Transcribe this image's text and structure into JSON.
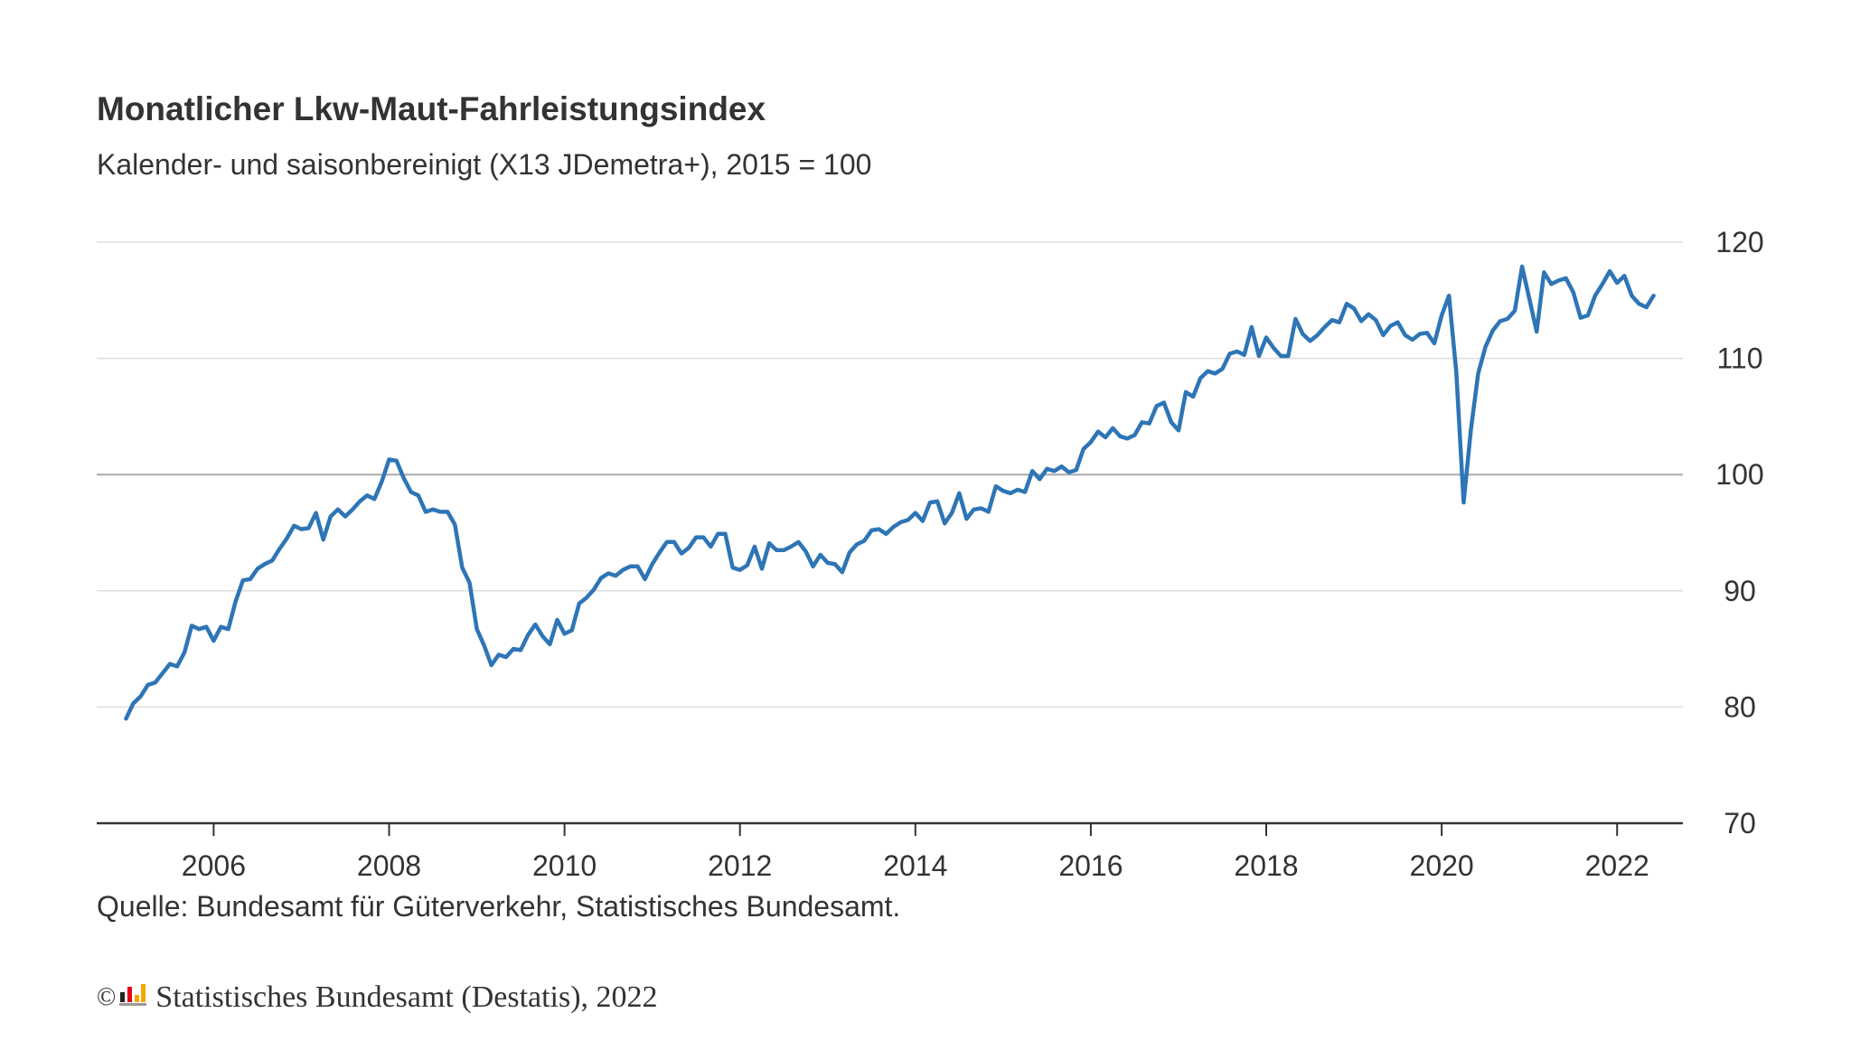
{
  "header": {
    "title": "Monatlicher Lkw-Maut-Fahrleistungsindex",
    "subtitle": "Kalender- und saisonbereinigt (X13 JDemetra+), 2015 = 100"
  },
  "source_note": "Quelle: Bundesamt für Güterverkehr, Statistisches Bundesamt.",
  "footer": {
    "copyright_symbol": "©",
    "text": "Statistisches Bundesamt (Destatis), 2022",
    "logo_icon": "destatis-logo-icon"
  },
  "colors": {
    "line": "#2e75b6",
    "grid": "#dddddd",
    "baseline": "#aaaaaa",
    "axis": "#333333"
  },
  "chart_data": {
    "type": "line",
    "title": "Monatlicher Lkw-Maut-Fahrleistungsindex",
    "subtitle": "Kalender- und saisonbereinigt (X13 JDemetra+), 2015 = 100",
    "xlabel": "",
    "ylabel": "",
    "x_start": "2005-01",
    "x_frequency": "monthly",
    "xlim": [
      "2004-09",
      "2022-10"
    ],
    "ylim": [
      70,
      120
    ],
    "x_ticks": [
      "2006",
      "2008",
      "2010",
      "2012",
      "2014",
      "2016",
      "2018",
      "2020",
      "2022"
    ],
    "y_ticks": [
      70,
      80,
      90,
      100,
      110,
      120
    ],
    "y_axis_position": "right",
    "grid": true,
    "reference_line": 100,
    "series": [
      {
        "values": [
          79.0,
          80.3,
          80.9,
          81.9,
          82.1,
          82.9,
          83.7,
          83.5,
          84.7,
          87.0,
          86.7,
          86.9,
          85.7,
          86.9,
          86.7,
          89.1,
          90.9,
          91.0,
          91.9,
          92.3,
          92.6,
          93.6,
          94.5,
          95.6,
          95.3,
          95.4,
          96.7,
          94.4,
          96.4,
          97.0,
          96.4,
          97.0,
          97.7,
          98.2,
          97.9,
          99.4,
          101.3,
          101.2,
          99.7,
          98.5,
          98.2,
          96.8,
          97.0,
          96.8,
          96.8,
          95.7,
          92.0,
          90.7,
          86.7,
          85.3,
          83.6,
          84.5,
          84.3,
          85.0,
          84.9,
          86.2,
          87.1,
          86.1,
          85.4,
          87.5,
          86.3,
          86.6,
          88.9,
          89.4,
          90.1,
          91.1,
          91.5,
          91.3,
          91.8,
          92.1,
          92.1,
          91.0,
          92.3,
          93.3,
          94.2,
          94.2,
          93.2,
          93.7,
          94.6,
          94.6,
          93.8,
          94.9,
          94.9,
          92.0,
          91.8,
          92.2,
          93.8,
          91.9,
          94.1,
          93.5,
          93.5,
          93.8,
          94.2,
          93.4,
          92.1,
          93.1,
          92.4,
          92.3,
          91.6,
          93.3,
          94.0,
          94.3,
          95.2,
          95.3,
          94.9,
          95.5,
          95.9,
          96.1,
          96.7,
          96.0,
          97.6,
          97.7,
          95.8,
          96.7,
          98.4,
          96.2,
          97.0,
          97.1,
          96.8,
          99.0,
          98.6,
          98.4,
          98.7,
          98.5,
          100.3,
          99.6,
          100.5,
          100.3,
          100.7,
          100.2,
          100.4,
          102.2,
          102.8,
          103.7,
          103.2,
          104.0,
          103.3,
          103.1,
          103.4,
          104.5,
          104.4,
          105.9,
          106.2,
          104.5,
          103.8,
          107.1,
          106.7,
          108.3,
          108.9,
          108.7,
          109.1,
          110.4,
          110.6,
          110.3,
          112.7,
          110.2,
          111.8,
          110.9,
          110.2,
          110.2,
          113.4,
          112.1,
          111.5,
          112.0,
          112.7,
          113.3,
          113.1,
          114.7,
          114.3,
          113.2,
          113.8,
          113.3,
          112.0,
          112.8,
          113.1,
          112.0,
          111.6,
          112.1,
          112.2,
          111.3,
          113.7,
          115.4,
          108.8,
          97.6,
          103.9,
          108.7,
          111.0,
          112.4,
          113.2,
          113.4,
          114.1,
          117.9,
          115.1,
          112.3,
          117.4,
          116.4,
          116.7,
          116.9,
          115.7,
          113.5,
          113.7,
          115.4,
          116.4,
          117.5,
          116.5,
          117.1,
          115.4,
          114.7,
          114.4,
          115.4
        ]
      }
    ]
  }
}
